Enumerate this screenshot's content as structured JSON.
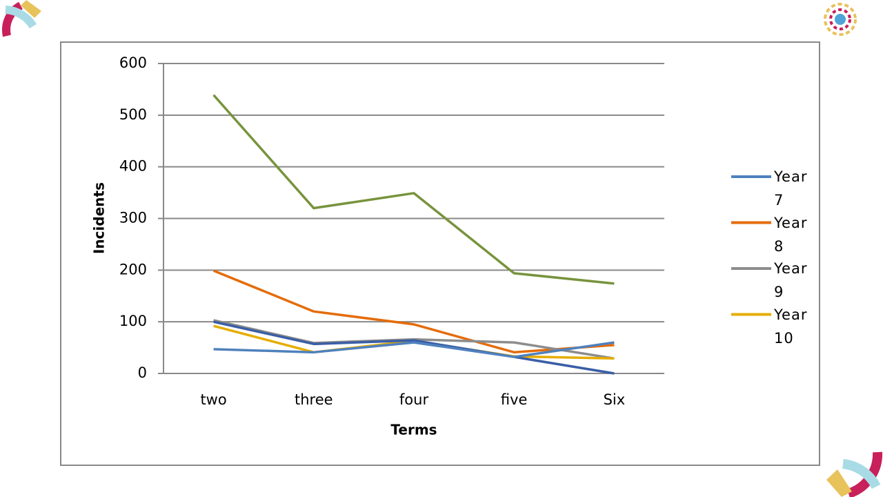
{
  "chart_data": {
    "type": "line",
    "x_label": "Terms",
    "y_label": "Incidents",
    "categories": [
      "two",
      "three",
      "four",
      "five",
      "Six"
    ],
    "ylim": [
      0,
      600
    ],
    "yticks": [
      0,
      100,
      200,
      300,
      400,
      500,
      600
    ],
    "grid": true,
    "series": [
      {
        "color": "#77933c",
        "values": [
          539,
          320,
          349,
          194,
          174
        ]
      },
      {
        "name": "Year 8",
        "color": "#e46c0a",
        "values": [
          199,
          120,
          95,
          41,
          55
        ]
      },
      {
        "name": "Year 9",
        "color": "#8c8c8c",
        "values": [
          103,
          59,
          66,
          60,
          29
        ]
      },
      {
        "name": "Year 10",
        "color": "#e6ad00",
        "values": [
          92,
          41,
          63,
          33,
          29
        ]
      },
      {
        "color": "#3a5ea6",
        "values": [
          100,
          57,
          64,
          32,
          0
        ]
      },
      {
        "name": "Year 7",
        "color": "#4f81bd",
        "values": [
          47,
          41,
          60,
          32,
          60
        ]
      }
    ]
  }
}
